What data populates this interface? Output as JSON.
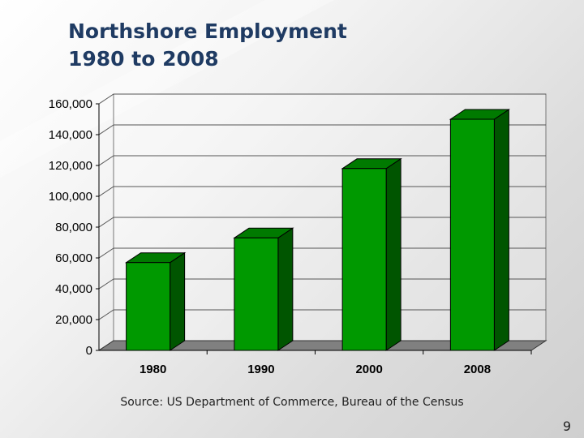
{
  "slide": {
    "title_line1": "Northshore Employment",
    "title_line2": "1980 to 2008",
    "source": "Source: US Department of Commerce, Bureau of the Census",
    "page_number": "9"
  },
  "chart_data": {
    "type": "bar",
    "categories": [
      "1980",
      "1990",
      "2000",
      "2008"
    ],
    "values": [
      57000,
      73000,
      118000,
      150000
    ],
    "ylim": [
      0,
      160000
    ],
    "yticks": [
      0,
      20000,
      40000,
      60000,
      80000,
      100000,
      120000,
      140000,
      160000
    ],
    "ytick_labels": [
      "0",
      "20,000",
      "40,000",
      "60,000",
      "80,000",
      "100,000",
      "120,000",
      "140,000",
      "160,000"
    ],
    "grid": true,
    "legend": "none",
    "bar_color": "#009900",
    "bar_side_color": "#005500",
    "bar_top_color": "#007a00",
    "floor_color": "#808080"
  }
}
